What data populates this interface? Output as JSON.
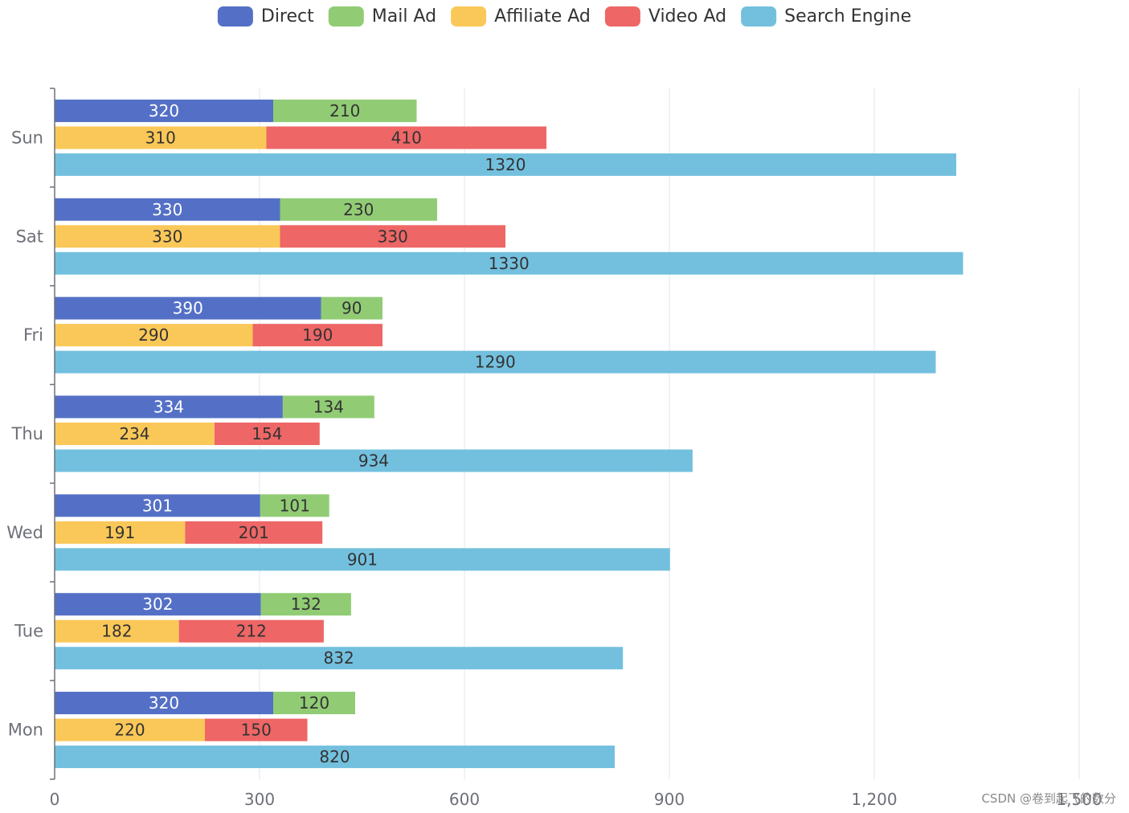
{
  "chart_data": {
    "type": "bar",
    "orientation": "horizontal",
    "categories": [
      "Mon",
      "Tue",
      "Wed",
      "Thu",
      "Fri",
      "Sat",
      "Sun"
    ],
    "series": [
      {
        "name": "Direct",
        "color": "#5470c6",
        "stack": "A",
        "values": [
          320,
          302,
          301,
          334,
          390,
          330,
          320
        ],
        "label_color": "#ffffff"
      },
      {
        "name": "Mail Ad",
        "color": "#91cc75",
        "stack": "A",
        "values": [
          120,
          132,
          101,
          134,
          90,
          230,
          210
        ],
        "label_color": "#333333"
      },
      {
        "name": "Affiliate Ad",
        "color": "#fac858",
        "stack": "B",
        "values": [
          220,
          182,
          191,
          234,
          290,
          330,
          310
        ],
        "label_color": "#333333"
      },
      {
        "name": "Video Ad",
        "color": "#ee6666",
        "stack": "B",
        "values": [
          150,
          212,
          201,
          154,
          190,
          330,
          410
        ],
        "label_color": "#333333"
      },
      {
        "name": "Search Engine",
        "color": "#73c0de",
        "stack": "C",
        "values": [
          820,
          832,
          901,
          934,
          1290,
          1330,
          1320
        ],
        "label_color": "#333333"
      }
    ],
    "xaxis": {
      "min": 0,
      "max": 1500,
      "ticks": [
        0,
        300,
        600,
        900,
        1200,
        1500
      ],
      "tick_labels": [
        "0",
        "300",
        "600",
        "900",
        "1,200",
        "1,500"
      ]
    },
    "legend": "top-center",
    "grid": "vertical"
  },
  "watermark": "CSDN @卷到起飞的数分"
}
